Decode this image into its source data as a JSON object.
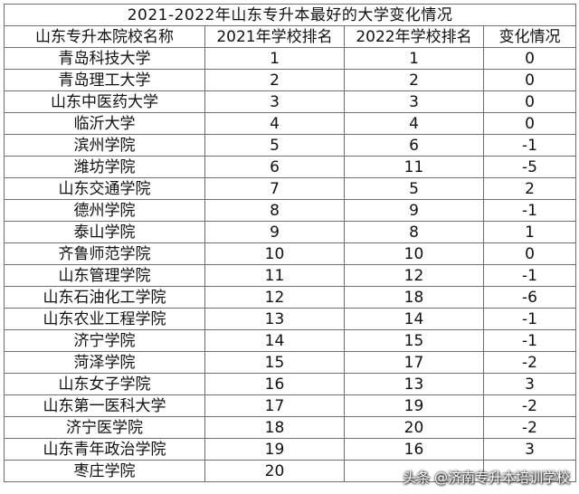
{
  "title": "2021-2022年山东专升本最好的大学变化情况",
  "headers": [
    "山东专升本院校名称",
    "2021年学校排名",
    "2022年学校排名",
    "变化情况"
  ],
  "rows": [
    {
      "name": "青岛科技大学",
      "r2021": "1",
      "r2022": "1",
      "change": "0"
    },
    {
      "name": "青岛理工大学",
      "r2021": "2",
      "r2022": "2",
      "change": "0"
    },
    {
      "name": "山东中医药大学",
      "r2021": "3",
      "r2022": "3",
      "change": "0"
    },
    {
      "name": "临沂大学",
      "r2021": "4",
      "r2022": "4",
      "change": "0"
    },
    {
      "name": "滨州学院",
      "r2021": "5",
      "r2022": "6",
      "change": "-1"
    },
    {
      "name": "潍坊学院",
      "r2021": "6",
      "r2022": "11",
      "change": "-5"
    },
    {
      "name": "山东交通学院",
      "r2021": "7",
      "r2022": "5",
      "change": "2"
    },
    {
      "name": "德州学院",
      "r2021": "8",
      "r2022": "9",
      "change": "-1"
    },
    {
      "name": "泰山学院",
      "r2021": "9",
      "r2022": "8",
      "change": "1"
    },
    {
      "name": "齐鲁师范学院",
      "r2021": "10",
      "r2022": "10",
      "change": "0"
    },
    {
      "name": "山东管理学院",
      "r2021": "11",
      "r2022": "12",
      "change": "-1"
    },
    {
      "name": "山东石油化工学院",
      "r2021": "12",
      "r2022": "18",
      "change": "-6"
    },
    {
      "name": "山东农业工程学院",
      "r2021": "13",
      "r2022": "14",
      "change": "-1"
    },
    {
      "name": "济宁学院",
      "r2021": "14",
      "r2022": "15",
      "change": "-1"
    },
    {
      "name": "菏泽学院",
      "r2021": "15",
      "r2022": "17",
      "change": "-2"
    },
    {
      "name": "山东女子学院",
      "r2021": "16",
      "r2022": "13",
      "change": "3"
    },
    {
      "name": "山东第一医科大学",
      "r2021": "17",
      "r2022": "19",
      "change": "-2"
    },
    {
      "name": "济宁医学院",
      "r2021": "18",
      "r2022": "20",
      "change": "-2"
    },
    {
      "name": "山东青年政治学院",
      "r2021": "19",
      "r2022": "16",
      "change": "3"
    },
    {
      "name": "枣庄学院",
      "r2021": "20",
      "r2022": "",
      "change": ""
    }
  ],
  "watermark": "头条 @济南专升本培训学校"
}
